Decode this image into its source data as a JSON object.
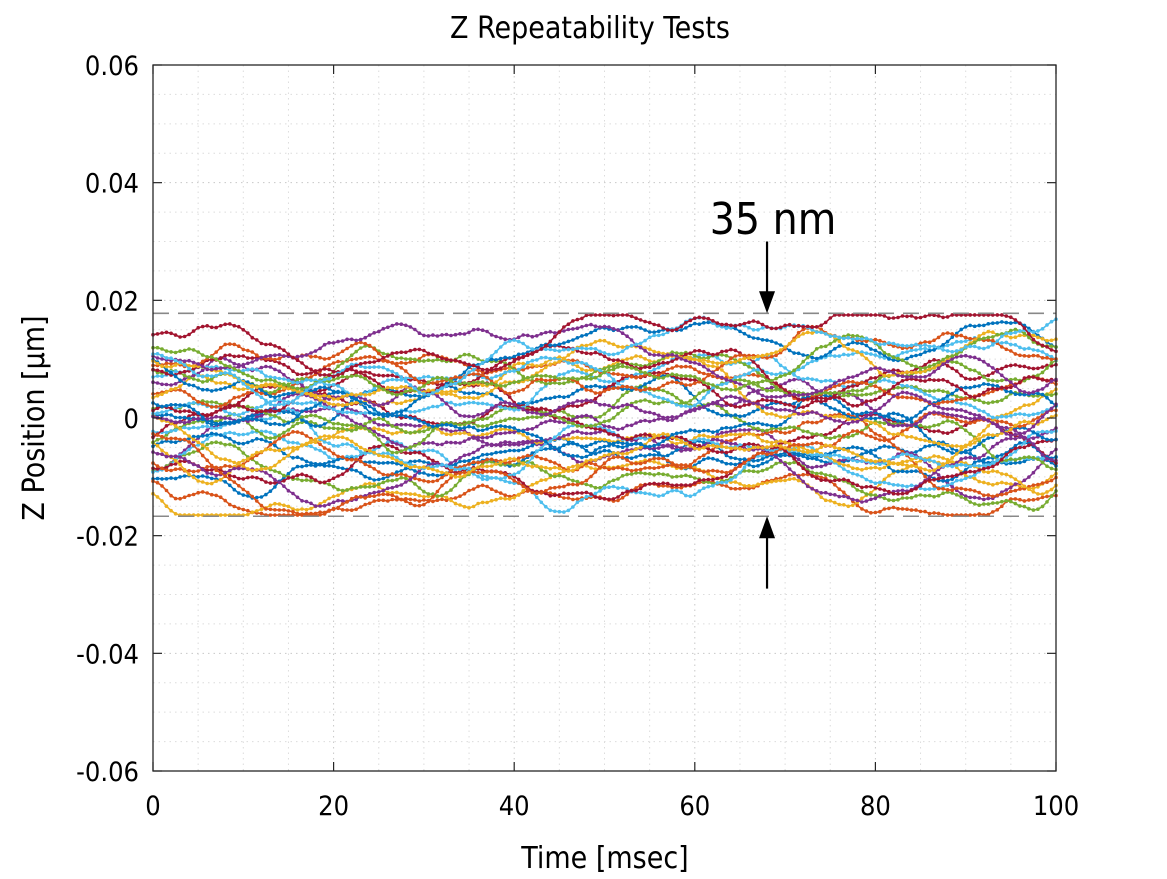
{
  "chart_data": {
    "type": "line",
    "title": "Z Repeatability Tests",
    "xlabel": "Time [msec]",
    "ylabel": "Z Position [μm]",
    "xlim": [
      0,
      100
    ],
    "ylim": [
      -0.06,
      0.06
    ],
    "xticks": [
      0,
      20,
      40,
      60,
      80,
      100
    ],
    "xtick_labels": [
      "0",
      "20",
      "40",
      "60",
      "80",
      "100"
    ],
    "yticks": [
      -0.06,
      -0.04,
      -0.02,
      0,
      0.02,
      0.04,
      0.06
    ],
    "ytick_labels": [
      "-0.06",
      "-0.04",
      "-0.02",
      "0",
      "0.02",
      "0.04",
      "0.06"
    ],
    "grid": "major and minor (dotted)",
    "markers": "small filled dots on every sample",
    "sample_step_ms": 0.5,
    "series_palette": [
      "#0072bd",
      "#d95319",
      "#edb120",
      "#7e2f8e",
      "#77ac30",
      "#4dbeee",
      "#a2142f"
    ],
    "series_summary": {
      "count": 35,
      "min_value": -0.0165,
      "max_value": 0.0175,
      "note": "Individual traces are not distinguishable; representative noisy traces are generated within the band between the dashed limit lines."
    },
    "reference_lines": [
      {
        "name": "upper-limit",
        "y": 0.0178,
        "style": "dashed",
        "color": "#888888"
      },
      {
        "name": "lower-limit",
        "y": -0.0167,
        "style": "dashed",
        "color": "#888888"
      }
    ],
    "annotations": [
      {
        "text": "35 nm",
        "x": 68,
        "y": 0.034
      },
      {
        "arrow": "down",
        "x": 68,
        "y_from": 0.03,
        "y_to": 0.0178
      },
      {
        "arrow": "up",
        "x": 68,
        "y_from": -0.029,
        "y_to": -0.0167
      }
    ]
  }
}
